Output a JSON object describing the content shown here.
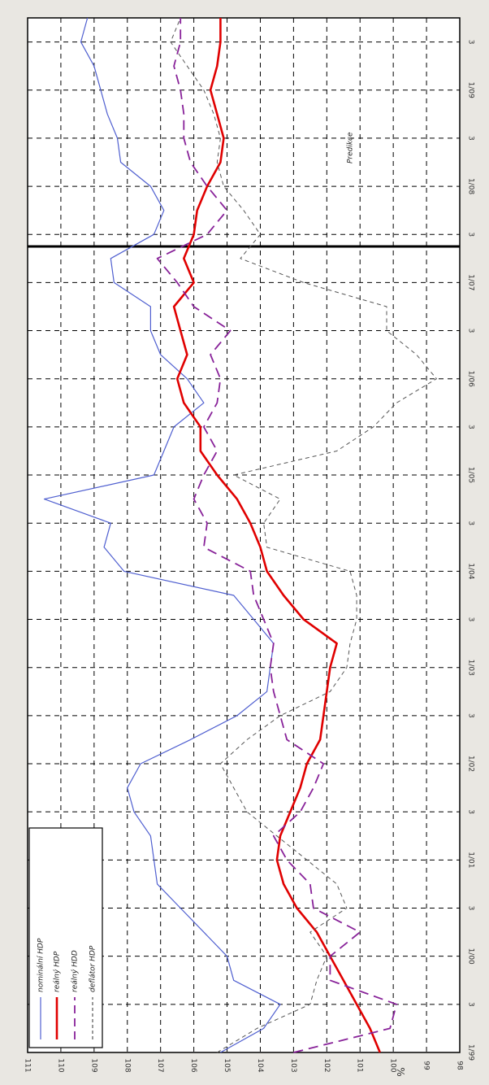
{
  "chart_data": {
    "type": "line",
    "title": "",
    "xlabel": "",
    "ylabel": "%",
    "ylim": [
      98,
      111
    ],
    "yticks": [
      98,
      99,
      100,
      101,
      102,
      103,
      104,
      105,
      106,
      107,
      108,
      109,
      110,
      111
    ],
    "grid": true,
    "legend_position": "top-left",
    "orientation": "rotated-90-clockwise",
    "x": [
      "1/99",
      "",
      "3",
      "",
      "1/00",
      "",
      "3",
      "",
      "1/01",
      "",
      "3",
      "",
      "1/02",
      "",
      "3",
      "",
      "1/03",
      "",
      "3",
      "",
      "1/04",
      "",
      "3",
      "",
      "1/05",
      "",
      "3",
      "",
      "1/06",
      "",
      "3",
      "",
      "1/07",
      "",
      "3",
      "",
      "1/08",
      "",
      "3",
      "",
      "1/09",
      "",
      "3",
      ""
    ],
    "x_tick_labels": [
      "1/99",
      "3",
      "1/00",
      "3",
      "1/01",
      "3",
      "1/02",
      "3",
      "1/03",
      "3",
      "1/04",
      "3",
      "1/05",
      "3",
      "1/06",
      "3",
      "1/07",
      "3",
      "1/08",
      "3",
      "1/09",
      "3"
    ],
    "divider_index": 33.5,
    "annotation": "Predikce",
    "series": [
      {
        "name": "nominální HDP",
        "color": "#4f5fd0",
        "style": "solid",
        "width": 1.2,
        "values": [
          105.2,
          103.9,
          103.4,
          104.8,
          105.0,
          105.7,
          106.4,
          107.1,
          107.2,
          107.3,
          107.8,
          108.0,
          107.6,
          106.1,
          104.7,
          103.8,
          103.7,
          103.6,
          104.2,
          104.8,
          108.1,
          108.7,
          108.5,
          110.5,
          107.2,
          106.9,
          106.6,
          105.7,
          106.2,
          107.0,
          107.3,
          107.3,
          108.4,
          108.5,
          107.2,
          106.9,
          107.3,
          108.2,
          108.3,
          108.6,
          108.8,
          109.0,
          109.4,
          109.2
        ]
      },
      {
        "name": "reálný HDP",
        "color": "#e00000",
        "style": "solid",
        "width": 2.6,
        "values": [
          100.4,
          100.7,
          101.1,
          101.5,
          101.9,
          102.3,
          102.9,
          103.3,
          103.5,
          103.4,
          103.1,
          102.8,
          102.6,
          102.2,
          102.1,
          102.0,
          101.9,
          101.7,
          102.7,
          103.3,
          103.8,
          104.0,
          104.3,
          104.7,
          105.3,
          105.8,
          105.8,
          106.3,
          106.5,
          106.2,
          106.4,
          106.6,
          106.0,
          106.3,
          106.0,
          105.9,
          105.6,
          105.2,
          105.1,
          105.3,
          105.5,
          105.3,
          105.2,
          105.2
        ]
      },
      {
        "name": "reálný HDD",
        "color": "#882299",
        "style": "dashed",
        "width": 1.8,
        "values": [
          103.0,
          100.1,
          99.9,
          101.9,
          101.9,
          101.0,
          102.4,
          102.5,
          103.2,
          103.6,
          102.8,
          102.4,
          102.1,
          103.2,
          103.4,
          103.6,
          103.7,
          103.6,
          103.9,
          104.2,
          104.3,
          105.7,
          105.6,
          106.0,
          105.7,
          105.3,
          105.7,
          105.3,
          105.2,
          105.5,
          104.9,
          106.0,
          106.5,
          107.1,
          105.6,
          105.0,
          105.6,
          106.1,
          106.3,
          106.3,
          106.4,
          106.6,
          106.4,
          106.4
        ]
      },
      {
        "name": "deflátor HDP",
        "color": "#555555",
        "style": "dashed",
        "width": 1.0,
        "values": [
          105.3,
          104.1,
          102.5,
          102.3,
          102.0,
          102.5,
          101.4,
          101.7,
          102.6,
          103.5,
          104.4,
          104.8,
          105.2,
          104.4,
          103.4,
          101.9,
          101.4,
          101.3,
          101.1,
          101.1,
          101.3,
          103.8,
          103.9,
          103.4,
          104.8,
          101.7,
          100.6,
          99.9,
          98.7,
          99.3,
          100.2,
          100.2,
          102.7,
          104.6,
          104.0,
          104.5,
          105.1,
          105.3,
          105.2,
          105.4,
          105.7,
          106.2,
          106.7,
          106.4
        ]
      }
    ]
  }
}
